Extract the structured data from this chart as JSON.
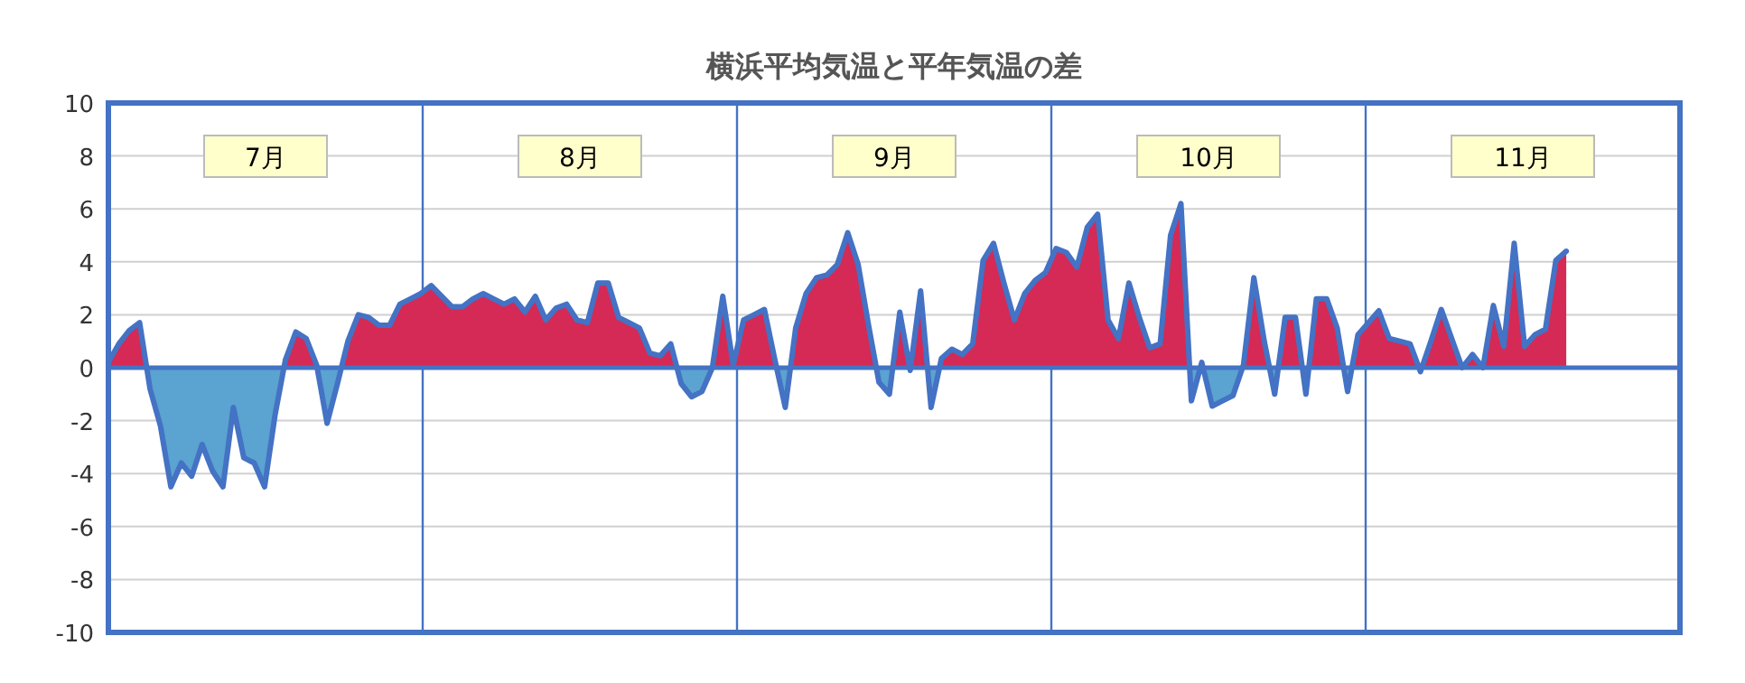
{
  "chart_data": {
    "type": "area",
    "title": "横浜平均気温と平年気温の差",
    "categories": [
      null,
      null,
      null,
      null,
      null,
      null,
      null,
      null,
      null,
      null,
      null,
      null,
      null,
      null,
      null,
      null,
      null,
      null,
      null,
      null,
      null,
      null,
      null,
      null,
      null,
      null,
      null,
      null,
      null,
      null,
      null,
      null,
      null,
      null,
      null,
      null,
      null,
      null,
      null,
      null,
      null,
      null,
      null,
      null,
      null,
      null,
      null,
      null,
      null,
      null,
      null,
      null,
      null,
      null,
      null,
      null,
      null,
      null,
      null,
      null,
      null,
      null,
      null,
      null,
      null,
      null,
      null,
      null,
      null,
      null,
      null,
      null,
      null,
      null,
      null,
      null,
      null,
      null,
      null,
      null,
      null,
      null,
      null,
      null,
      null,
      null,
      null,
      null,
      null,
      null,
      null,
      null,
      null,
      null,
      null,
      null,
      null,
      null,
      null,
      null,
      null,
      null,
      null,
      null,
      null,
      null,
      null,
      null,
      null,
      null,
      null,
      null,
      null,
      null,
      null,
      null,
      null,
      null,
      null,
      null,
      null,
      null,
      null,
      null,
      null,
      null,
      null,
      null,
      null,
      null,
      null,
      null,
      null,
      null,
      null,
      null,
      null,
      null,
      null,
      null,
      null
    ],
    "series": [
      {
        "color": "#4472c4",
        "values": [
          0.2,
          0.9,
          1.4,
          1.7,
          -0.8,
          -2.2,
          -4.5,
          -3.6,
          -4.1,
          -2.9,
          -3.9,
          -4.5,
          -1.5,
          -3.4,
          -3.6,
          -4.5,
          -1.8,
          0.3,
          1.35,
          1.1,
          0.1,
          -2.1,
          -0.6,
          1.0,
          2.0,
          1.9,
          1.6,
          1.6,
          2.4,
          2.6,
          2.8,
          3.1,
          2.7,
          2.3,
          2.3,
          2.6,
          2.8,
          2.6,
          2.4,
          2.6,
          2.1,
          2.7,
          1.8,
          2.25,
          2.4,
          1.8,
          1.7,
          3.2,
          3.2,
          1.9,
          1.7,
          1.5,
          0.55,
          0.45,
          0.9,
          -0.6,
          -1.1,
          -0.9,
          0,
          2.7,
          0.1,
          1.8,
          2.0,
          2.2,
          0.3,
          -1.5,
          1.5,
          2.8,
          3.4,
          3.5,
          3.9,
          5.1,
          3.9,
          1.6,
          -0.55,
          -1.0,
          2.1,
          -0.1,
          2.9,
          -1.5,
          0.35,
          0.7,
          0.5,
          0.9,
          4.05,
          4.7,
          3.2,
          1.8,
          2.8,
          3.3,
          3.6,
          4.5,
          4.35,
          3.8,
          5.3,
          5.8,
          1.8,
          1.1,
          3.2,
          1.9,
          0.75,
          0.9,
          5.0,
          6.2,
          -1.25,
          0.2,
          -1.45,
          -1.25,
          -1.05,
          0.1,
          3.4,
          1.0,
          -1.0,
          1.9,
          1.9,
          -1.0,
          2.6,
          2.6,
          1.5,
          -0.9,
          1.25,
          1.7,
          2.15,
          1.1,
          1.0,
          0.9,
          -0.15,
          1.0,
          2.2,
          1.1,
          0,
          0.5,
          0,
          2.35,
          0.8,
          4.7,
          0.8,
          1.25,
          1.45,
          4.05,
          4.4
        ]
      }
    ],
    "ylim": [
      -10,
      10
    ],
    "yticks": [
      -10,
      -8,
      -6,
      -4,
      -2,
      0,
      2,
      4,
      6,
      8,
      10
    ],
    "grid": "y",
    "ref_lines": [
      {
        "axis": "y",
        "value": 0,
        "color": "#4472c4"
      }
    ],
    "annotations": [
      "7月",
      "8月",
      "9月",
      "10月",
      "11月"
    ]
  }
}
